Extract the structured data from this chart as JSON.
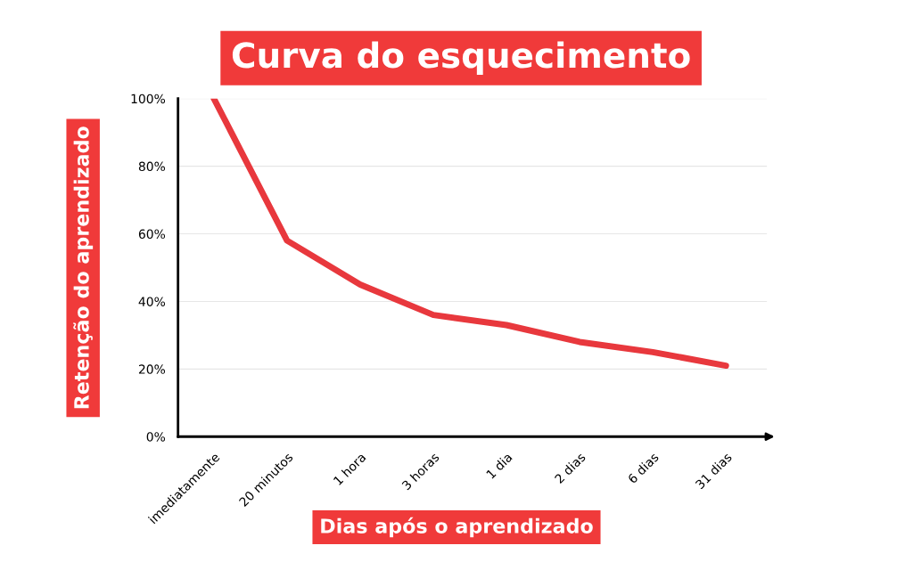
{
  "chart_data": {
    "type": "line",
    "title": "Curva do esquecimento",
    "xlabel": "Dias após o aprendizado",
    "ylabel": "Retenção do aprendizado",
    "categories": [
      "imediatamente",
      "20 minutos",
      "1 hora",
      "3 horas",
      "1 dia",
      "2 dias",
      "6 dias",
      "31 dias"
    ],
    "series": [
      {
        "color": "#e8383d",
        "values": [
          100,
          58,
          45,
          36,
          33,
          28,
          25,
          21
        ]
      }
    ],
    "ylim": [
      0,
      100
    ],
    "yticks": [
      {
        "value": 0,
        "label": "0%"
      },
      {
        "value": 20,
        "label": "20%"
      },
      {
        "value": 40,
        "label": "40%"
      },
      {
        "value": 60,
        "label": "60%"
      },
      {
        "value": 80,
        "label": "80%"
      },
      {
        "value": 100,
        "label": "100%"
      }
    ],
    "grid": "y",
    "marker": "none",
    "line_style": "solid",
    "legend": false
  }
}
